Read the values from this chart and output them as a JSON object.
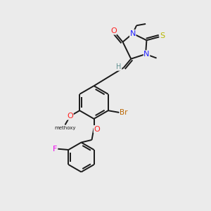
{
  "bg_color": "#ebebeb",
  "bond_color": "#1a1a1a",
  "atom_colors": {
    "O": "#ff2020",
    "N": "#2020ff",
    "S": "#b8b800",
    "Br": "#bb6600",
    "F": "#ee00ee",
    "H": "#609090",
    "C": "#1a1a1a"
  },
  "lw": 1.4,
  "figsize": [
    3.0,
    3.0
  ],
  "dpi": 100,
  "xlim": [
    0,
    10
  ],
  "ylim": [
    0,
    10
  ]
}
